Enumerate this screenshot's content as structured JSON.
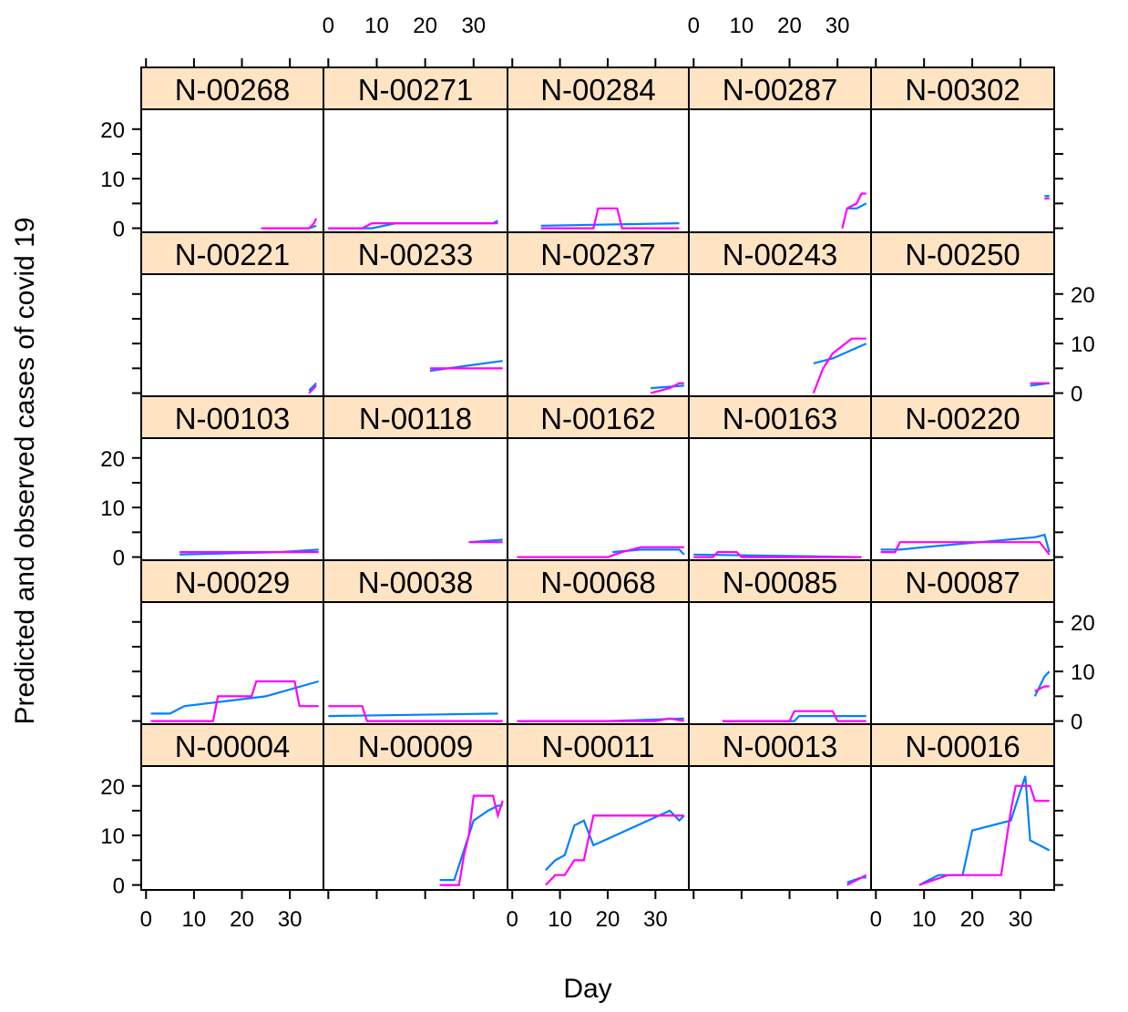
{
  "chart_data": {
    "type": "line",
    "title": "",
    "xlabel": "Day",
    "ylabel": "Predicted and observed cases of covid 19",
    "xlim": [
      -1,
      37
    ],
    "ylim": [
      -1,
      24
    ],
    "xticks": [
      0,
      10,
      20,
      30
    ],
    "yticks": [
      0,
      10,
      20
    ],
    "colors": {
      "observed": "#ff00ff",
      "predicted": "#0080ff",
      "strip": "#ffe4c4"
    },
    "layout": {
      "columns": 5,
      "rows": 5
    },
    "panels": [
      {
        "label": "N-00268",
        "observed": [
          [
            24,
            0
          ],
          [
            34,
            0
          ],
          [
            35,
            1
          ],
          [
            35.5,
            2
          ]
        ],
        "predicted": [
          [
            34,
            0
          ],
          [
            35.5,
            0.5
          ]
        ]
      },
      {
        "label": "N-00271",
        "observed": [
          [
            0,
            0
          ],
          [
            7,
            0
          ],
          [
            9,
            1
          ],
          [
            35,
            1
          ]
        ],
        "predicted": [
          [
            0,
            0
          ],
          [
            9,
            0
          ],
          [
            14,
            1
          ],
          [
            34,
            1
          ],
          [
            35,
            1.5
          ]
        ]
      },
      {
        "label": "N-00284",
        "observed": [
          [
            6,
            0
          ],
          [
            17,
            0
          ],
          [
            18,
            4
          ],
          [
            22,
            4
          ],
          [
            23,
            0
          ],
          [
            35,
            0
          ]
        ],
        "predicted": [
          [
            6,
            0.5
          ],
          [
            35,
            1
          ]
        ]
      },
      {
        "label": "N-00287",
        "observed": [
          [
            31,
            0
          ],
          [
            32,
            4
          ],
          [
            34,
            5
          ],
          [
            35,
            7
          ],
          [
            36,
            7
          ]
        ],
        "predicted": [
          [
            32,
            4
          ],
          [
            34,
            4
          ],
          [
            36,
            5
          ]
        ]
      },
      {
        "label": "N-00302",
        "observed": [
          [
            35,
            6
          ],
          [
            36,
            6
          ]
        ],
        "predicted": [
          [
            35,
            6.5
          ],
          [
            36,
            6.5
          ]
        ]
      },
      {
        "label": "N-00221",
        "observed": [
          [
            34,
            0
          ],
          [
            35,
            1
          ],
          [
            35.5,
            1.5
          ]
        ],
        "predicted": [
          [
            34,
            0.5
          ],
          [
            35.5,
            2
          ]
        ]
      },
      {
        "label": "N-00233",
        "observed": [
          [
            21,
            5
          ],
          [
            36,
            5
          ]
        ],
        "predicted": [
          [
            21,
            4.5
          ],
          [
            36,
            6.5
          ]
        ]
      },
      {
        "label": "N-00237",
        "observed": [
          [
            29,
            0
          ],
          [
            33,
            1
          ],
          [
            35,
            2
          ],
          [
            36,
            2
          ]
        ],
        "predicted": [
          [
            29,
            1
          ],
          [
            36,
            1.5
          ]
        ]
      },
      {
        "label": "N-00243",
        "observed": [
          [
            25,
            0
          ],
          [
            27,
            5
          ],
          [
            29,
            8
          ],
          [
            33,
            11
          ],
          [
            36,
            11
          ]
        ],
        "predicted": [
          [
            25,
            6
          ],
          [
            29,
            7
          ],
          [
            36,
            10
          ]
        ]
      },
      {
        "label": "N-00250",
        "observed": [
          [
            32,
            2
          ],
          [
            36,
            2
          ]
        ],
        "predicted": [
          [
            32,
            1.5
          ],
          [
            36,
            2
          ]
        ]
      },
      {
        "label": "N-00103",
        "observed": [
          [
            7,
            1
          ],
          [
            36,
            1
          ]
        ],
        "predicted": [
          [
            7,
            0.5
          ],
          [
            28,
            1
          ],
          [
            36,
            1.5
          ]
        ]
      },
      {
        "label": "N-00118",
        "observed": [
          [
            29,
            3
          ],
          [
            36,
            3
          ]
        ],
        "predicted": [
          [
            29,
            3
          ],
          [
            36,
            3.5
          ]
        ]
      },
      {
        "label": "N-00162",
        "observed": [
          [
            1,
            0
          ],
          [
            20,
            0
          ],
          [
            23,
            1
          ],
          [
            27,
            2
          ],
          [
            36,
            2
          ]
        ],
        "predicted": [
          [
            21,
            1
          ],
          [
            27,
            1.5
          ],
          [
            35,
            1.5
          ],
          [
            36,
            0.5
          ]
        ]
      },
      {
        "label": "N-00163",
        "observed": [
          [
            0,
            0
          ],
          [
            4,
            0
          ],
          [
            5,
            1
          ],
          [
            9,
            1
          ],
          [
            10,
            0
          ],
          [
            35,
            0
          ]
        ],
        "predicted": [
          [
            0,
            0.5
          ],
          [
            35,
            0
          ]
        ]
      },
      {
        "label": "N-00220",
        "observed": [
          [
            1,
            1
          ],
          [
            4,
            1
          ],
          [
            5,
            3
          ],
          [
            34,
            3
          ],
          [
            36,
            0.5
          ]
        ],
        "predicted": [
          [
            1,
            1.5
          ],
          [
            5,
            1.5
          ],
          [
            10,
            2
          ],
          [
            33,
            4
          ],
          [
            35,
            4.5
          ],
          [
            36,
            1
          ]
        ]
      },
      {
        "label": "N-00029",
        "observed": [
          [
            1,
            0
          ],
          [
            14,
            0
          ],
          [
            15,
            5
          ],
          [
            22,
            5
          ],
          [
            23,
            8
          ],
          [
            31,
            8
          ],
          [
            32,
            3
          ],
          [
            36,
            3
          ]
        ],
        "predicted": [
          [
            1,
            1.5
          ],
          [
            5,
            1.5
          ],
          [
            8,
            3
          ],
          [
            25,
            5
          ],
          [
            36,
            8
          ]
        ]
      },
      {
        "label": "N-00038",
        "observed": [
          [
            0,
            3
          ],
          [
            7,
            3
          ],
          [
            8,
            0
          ],
          [
            36,
            0
          ]
        ],
        "predicted": [
          [
            0,
            1
          ],
          [
            35,
            1.5
          ]
        ]
      },
      {
        "label": "N-00068",
        "observed": [
          [
            1,
            0
          ],
          [
            30,
            0
          ],
          [
            33,
            0.5
          ],
          [
            36,
            0
          ]
        ],
        "predicted": [
          [
            1,
            0
          ],
          [
            20,
            0
          ],
          [
            36,
            0.5
          ]
        ]
      },
      {
        "label": "N-00085",
        "observed": [
          [
            6,
            0
          ],
          [
            20,
            0
          ],
          [
            21,
            2
          ],
          [
            29,
            2
          ],
          [
            30,
            0
          ],
          [
            36,
            0
          ]
        ],
        "predicted": [
          [
            6,
            0
          ],
          [
            21,
            0
          ],
          [
            22,
            1
          ],
          [
            36,
            1
          ]
        ]
      },
      {
        "label": "N-00087",
        "observed": [
          [
            33,
            6
          ],
          [
            35,
            7
          ],
          [
            36,
            7
          ]
        ],
        "predicted": [
          [
            33,
            5
          ],
          [
            35,
            9
          ],
          [
            36,
            10
          ]
        ]
      },
      {
        "label": "N-00004",
        "observed": [],
        "predicted": []
      },
      {
        "label": "N-00009",
        "observed": [
          [
            23,
            0
          ],
          [
            27,
            0
          ],
          [
            28,
            6
          ],
          [
            29,
            10
          ],
          [
            30,
            18
          ],
          [
            34,
            18
          ],
          [
            35,
            14
          ],
          [
            36,
            17
          ]
        ],
        "predicted": [
          [
            23,
            1
          ],
          [
            26,
            1
          ],
          [
            28,
            7
          ],
          [
            30,
            13
          ],
          [
            33,
            15
          ],
          [
            35,
            16
          ],
          [
            36,
            16
          ]
        ]
      },
      {
        "label": "N-00011",
        "observed": [
          [
            7,
            0
          ],
          [
            9,
            2
          ],
          [
            11,
            2
          ],
          [
            13,
            5
          ],
          [
            15,
            5
          ],
          [
            17,
            14
          ],
          [
            36,
            14
          ]
        ],
        "predicted": [
          [
            7,
            3
          ],
          [
            9,
            5
          ],
          [
            11,
            6
          ],
          [
            13,
            12
          ],
          [
            15,
            13
          ],
          [
            17,
            8
          ],
          [
            33,
            15
          ],
          [
            35,
            13
          ],
          [
            36,
            14
          ]
        ]
      },
      {
        "label": "N-00013",
        "observed": [
          [
            32,
            0
          ],
          [
            34,
            1
          ],
          [
            36,
            2
          ]
        ],
        "predicted": [
          [
            32,
            0.5
          ],
          [
            35,
            1.5
          ],
          [
            36,
            1.5
          ]
        ]
      },
      {
        "label": "N-00016",
        "observed": [
          [
            9,
            0
          ],
          [
            12,
            1
          ],
          [
            15,
            2
          ],
          [
            26,
            2
          ],
          [
            28,
            15
          ],
          [
            29,
            20
          ],
          [
            32,
            20
          ],
          [
            33,
            17
          ],
          [
            36,
            17
          ]
        ],
        "predicted": [
          [
            9,
            0
          ],
          [
            11,
            1
          ],
          [
            13,
            2
          ],
          [
            18,
            2
          ],
          [
            20,
            11
          ],
          [
            28,
            13
          ],
          [
            31,
            22
          ],
          [
            32,
            9
          ],
          [
            34,
            8
          ],
          [
            36,
            7
          ]
        ]
      }
    ]
  },
  "axes": {
    "top_xticks": [
      {
        "col": 1,
        "labels": [
          "0",
          "10",
          "20",
          "30"
        ]
      },
      {
        "col": 3,
        "labels": [
          "0",
          "10",
          "20",
          "30"
        ]
      }
    ],
    "bottom_xticks": [
      {
        "col": 0,
        "labels": [
          "0",
          "10",
          "20",
          "30"
        ]
      },
      {
        "col": 2,
        "labels": [
          "0",
          "10",
          "20",
          "30"
        ]
      },
      {
        "col": 4,
        "labels": [
          "0",
          "10",
          "20",
          "30"
        ]
      }
    ],
    "left_yticks_rows": [
      0,
      2,
      4
    ],
    "right_yticks_rows": [
      1,
      3
    ],
    "ytick_labels": [
      "0",
      "10",
      "20"
    ]
  }
}
